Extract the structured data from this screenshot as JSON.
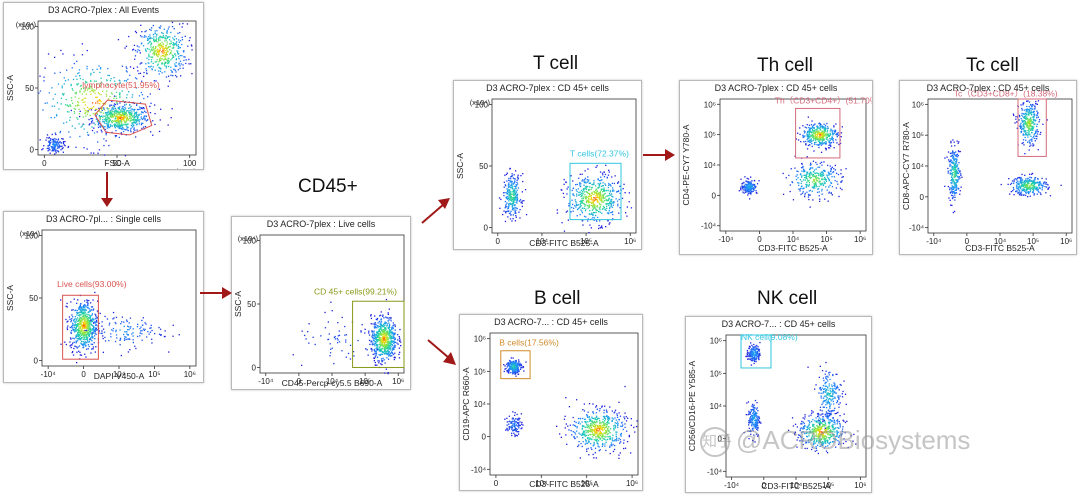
{
  "sections": {
    "cd45": "CD45+",
    "tcell": "T cell",
    "th": "Th cell",
    "tc": "Tc cell",
    "bcell": "B cell",
    "nk": "NK cell"
  },
  "watermark": "@ACROBiosystems",
  "watermark_logo": "知乎",
  "colors": {
    "gate_red": "#d9534f",
    "gate_cyan": "#33c6e0",
    "gate_olive": "#8a9a1a",
    "gate_orange": "#d08a2a",
    "gate_pink": "#d46a7a",
    "arrow": "#a01818"
  },
  "chart_data": [
    {
      "id": "all-events",
      "type": "scatter",
      "title": "D3 ACRO-7plex : All Events",
      "xlabel": "FSC-A",
      "ylabel": "SSC-A",
      "xlim": [
        0,
        100
      ],
      "ylim": [
        0,
        100
      ],
      "x_scale_label": "(x10⁴)",
      "y_scale_label": "(x10⁴)",
      "xticks": [
        "0",
        "50",
        "100"
      ],
      "yticks": [
        "0",
        "50",
        "100"
      ],
      "gate": {
        "label": "lymphocyte(51.95%)",
        "percent": 51.95
      },
      "populations": [
        {
          "cx": 52,
          "cy": 28,
          "sx": 9,
          "sy": 5,
          "n": 520
        },
        {
          "cx": 78,
          "cy": 78,
          "sx": 8,
          "sy": 10,
          "n": 420
        },
        {
          "cx": 35,
          "cy": 40,
          "sx": 18,
          "sy": 16,
          "n": 380
        },
        {
          "cx": 10,
          "cy": 8,
          "sx": 3,
          "sy": 3,
          "n": 120
        }
      ]
    },
    {
      "id": "single-cells",
      "type": "scatter",
      "title": "D3 ACRO-7pl... : Single cells",
      "xlabel": "DAPI V450-A",
      "ylabel": "SSC-A",
      "xticks": [
        "-10⁴",
        "0",
        "10⁴",
        "10⁵",
        "10⁶"
      ],
      "yticks": [
        "0",
        "50",
        "100"
      ],
      "y_scale_label": "(x10⁴)",
      "gate": {
        "label": "Live cells(93.00%)",
        "percent": 93.0
      },
      "populations": [
        {
          "cx": 0.9,
          "cy": 30,
          "sx": 0.25,
          "sy": 9,
          "n": 620
        },
        {
          "cx": 2.4,
          "cy": 26,
          "sx": 0.7,
          "sy": 6,
          "n": 130
        }
      ]
    },
    {
      "id": "live-cells",
      "type": "scatter",
      "title": "D3 ACRO-7plex : Live cells",
      "xlabel": "CD45-Percp-cy5.5 B690-A",
      "ylabel": "SSC-A",
      "xticks": [
        "-10⁴",
        "0",
        "10⁴",
        "10⁵",
        "10⁶"
      ],
      "yticks": [
        "0",
        "50",
        "100"
      ],
      "y_scale_label": "(x10⁴)",
      "gate": {
        "label": "CD 45+ cells(99.21%)",
        "percent": 99.21
      },
      "populations": [
        {
          "cx": 4.2,
          "cy": 25,
          "sx": 0.25,
          "sy": 8,
          "n": 620
        },
        {
          "cx": 2.5,
          "cy": 22,
          "sx": 0.9,
          "sy": 9,
          "n": 60
        }
      ]
    },
    {
      "id": "t-cell",
      "type": "scatter",
      "title": "D3 ACRO-7plex : CD 45+ cells",
      "xlabel": "CD3-FITC B525-A",
      "ylabel": "SSC-A",
      "xticks": [
        "0",
        "10⁴",
        "10⁵",
        "10⁶"
      ],
      "yticks": [
        "0",
        "50",
        "100"
      ],
      "y_scale_label": "(x10⁴)",
      "gate": {
        "label": "T cells(72.37%)",
        "percent": 72.37
      },
      "populations": [
        {
          "cx": 0.35,
          "cy": 28,
          "sx": 0.15,
          "sy": 8,
          "n": 260
        },
        {
          "cx": 3.1,
          "cy": 26,
          "sx": 0.45,
          "sy": 9,
          "n": 520
        }
      ]
    },
    {
      "id": "th-cell",
      "type": "scatter",
      "title": "D3 ACRO-7plex : CD 45+ cells",
      "xlabel": "CD3-FITC B525-A",
      "ylabel": "CD4-PE-CY7 Y780-A",
      "xticks": [
        "-10⁴",
        "0",
        "10⁴",
        "10⁵",
        "10⁶"
      ],
      "yticks": [
        "-10⁴",
        "0",
        "10⁴",
        "10⁵",
        "10⁶"
      ],
      "gate": {
        "label": "Th（CD3+CD4+）(51.70%)",
        "percent": 51.7
      },
      "populations": [
        {
          "cx": 3.2,
          "cy": 3.5,
          "sx": 0.35,
          "sy": 0.25,
          "n": 380
        },
        {
          "cx": 3.0,
          "cy": 1.6,
          "sx": 0.5,
          "sy": 0.35,
          "n": 300
        },
        {
          "cx": 0.5,
          "cy": 1.3,
          "sx": 0.15,
          "sy": 0.15,
          "n": 170
        }
      ]
    },
    {
      "id": "tc-cell",
      "type": "scatter",
      "title": "D3 ACRO-7plex : CD 45+ cells",
      "xlabel": "CD3-FITC B525-A",
      "ylabel": "CD8-APC-CY7 R780-A",
      "xticks": [
        "-10⁴",
        "0",
        "10⁴",
        "10⁵",
        "10⁶"
      ],
      "yticks": [
        "-10⁴",
        "0",
        "10⁴",
        "10⁵",
        "10⁶"
      ],
      "gate": {
        "label": "Tc（CD3+CD8+）(18.38%)",
        "percent": 18.38
      },
      "populations": [
        {
          "cx": 3.3,
          "cy": 4.0,
          "sx": 0.2,
          "sy": 0.45,
          "n": 320
        },
        {
          "cx": 3.3,
          "cy": 1.4,
          "sx": 0.35,
          "sy": 0.2,
          "n": 300
        },
        {
          "cx": 0.4,
          "cy": 1.9,
          "sx": 0.12,
          "sy": 0.55,
          "n": 260
        }
      ]
    },
    {
      "id": "b-cell",
      "type": "scatter",
      "title": "D3 ACRO-7... : CD 45+ cells",
      "xlabel": "CD3-FITC B525-A",
      "ylabel": "CD19-APC R660-A",
      "xticks": [
        "0",
        "10⁴",
        "10⁵",
        "10⁶"
      ],
      "yticks": [
        "-10⁴",
        "0",
        "10⁴",
        "10⁵",
        "10⁶"
      ],
      "gate": {
        "label": "B cells(17.56%)",
        "percent": 17.56
      },
      "populations": [
        {
          "cx": 0.45,
          "cy": 3.7,
          "sx": 0.12,
          "sy": 0.15,
          "n": 220
        },
        {
          "cx": 3.2,
          "cy": 1.2,
          "sx": 0.45,
          "sy": 0.4,
          "n": 520
        },
        {
          "cx": 0.45,
          "cy": 1.4,
          "sx": 0.12,
          "sy": 0.2,
          "n": 100
        }
      ]
    },
    {
      "id": "nk-cell",
      "type": "scatter",
      "title": "D3 ACRO-7... : CD 45+ cells",
      "xlabel": "CD3-FITC B525-A",
      "ylabel": "CD56/CD16-PE Y585-A",
      "xticks": [
        "-10⁴",
        "0",
        "10⁴",
        "10⁵",
        "10⁶"
      ],
      "yticks": [
        "-10⁴",
        "0",
        "10⁴",
        "10⁵",
        "10⁶"
      ],
      "gate": {
        "label": "NK cell(9.08%)",
        "percent": 9.08
      },
      "populations": [
        {
          "cx": 0.5,
          "cy": 4.3,
          "sx": 0.12,
          "sy": 0.18,
          "n": 160
        },
        {
          "cx": 3.2,
          "cy": 1.2,
          "sx": 0.45,
          "sy": 0.35,
          "n": 470
        },
        {
          "cx": 0.5,
          "cy": 1.7,
          "sx": 0.12,
          "sy": 0.35,
          "n": 160
        },
        {
          "cx": 3.5,
          "cy": 2.7,
          "sx": 0.25,
          "sy": 0.5,
          "n": 200
        }
      ]
    }
  ]
}
